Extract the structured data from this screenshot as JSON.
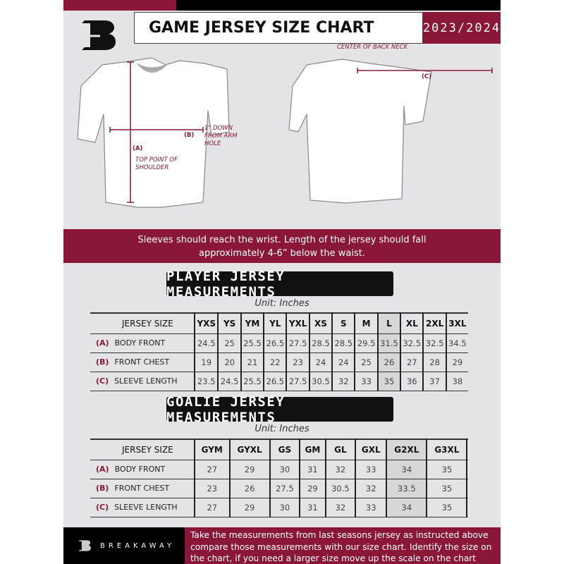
{
  "header": {
    "title": "GAME JERSEY SIZE CHART",
    "season": "2023/2024"
  },
  "diagram": {
    "center_back_neck": "CENTER OF BACK NECK",
    "label_a": "(A)",
    "label_b": "(B)",
    "label_c": "(C)",
    "top_point": "TOP POINT OF SHOULDER",
    "arm_hole": "1\" DOWN FROM ARM HOLE"
  },
  "note": "Sleeves should reach the wrist. Length of the jersey should fall approximately 4-6” below the waist.",
  "player": {
    "title": "PLAYER JERSEY MEASUREMENTS",
    "unit": "Unit: Inches",
    "size_header": "JERSEY SIZE",
    "sizes": [
      "YXS",
      "YS",
      "YM",
      "YL",
      "YXL",
      "XS",
      "S",
      "M",
      "L",
      "XL",
      "2XL",
      "3XL"
    ],
    "rows": [
      {
        "key": "(A)",
        "label": "BODY FRONT",
        "values": [
          "24.5",
          "25",
          "25.5",
          "26.5",
          "27.5",
          "28.5",
          "28.5",
          "29.5",
          "31.5",
          "32.5",
          "32.5",
          "34.5"
        ]
      },
      {
        "key": "(B)",
        "label": "FRONT CHEST",
        "values": [
          "19",
          "20",
          "21",
          "22",
          "23",
          "24",
          "24",
          "25",
          "26",
          "27",
          "28",
          "29"
        ]
      },
      {
        "key": "(C)",
        "label": "SLEEVE LENGTH",
        "values": [
          "23.5",
          "24.5",
          "25.5",
          "26.5",
          "27.5",
          "30.5",
          "32",
          "33",
          "35",
          "36",
          "37",
          "38"
        ]
      }
    ]
  },
  "goalie": {
    "title": "GOALIE JERSEY MEASUREMENTS",
    "unit": "Unit: Inches",
    "size_header": "JERSEY SIZE",
    "sizes": [
      "GYM",
      "GYXL",
      "GS",
      "GM",
      "GL",
      "GXL",
      "G2XL",
      "G3XL",
      ""
    ],
    "rows": [
      {
        "key": "(A)",
        "label": "BODY FRONT",
        "values": [
          "27",
          "29",
          "30",
          "31",
          "32",
          "33",
          "34",
          "35",
          ""
        ]
      },
      {
        "key": "(B)",
        "label": "FRONT CHEST",
        "values": [
          "23",
          "26",
          "27.5",
          "29",
          "30.5",
          "32",
          "33.5",
          "35",
          ""
        ]
      },
      {
        "key": "(C)",
        "label": "SLEEVE LENGTH",
        "values": [
          "27",
          "29",
          "30",
          "31",
          "32",
          "33",
          "34",
          "35",
          ""
        ]
      }
    ]
  },
  "footer": {
    "brand": "BREAKAWAY",
    "instructions": "Take the measurements from last seasons jersey as instructed above compare those measurements  with our size chart. Identify the size on the chart, if you need a larger size move up the scale on the chart"
  },
  "colors": {
    "accent": "#8a1738",
    "dark": "#000000",
    "background": "#e4e4e6"
  }
}
